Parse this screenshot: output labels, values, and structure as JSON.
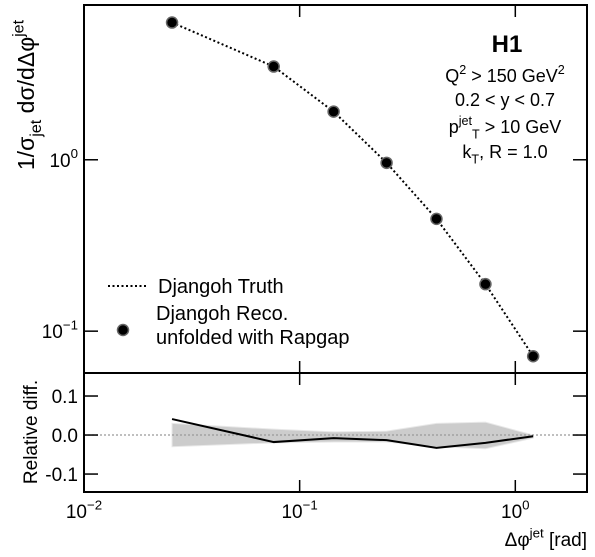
{
  "chart_data": [
    {
      "type": "line",
      "logo": "H1",
      "annotations": [
        [
          {
            "text": "Q"
          },
          {
            "text": "2",
            "shift": "super"
          },
          {
            "text": " > 150 GeV"
          },
          {
            "text": "2",
            "shift": "super"
          }
        ],
        [
          {
            "text": "0.2 < y < 0.7"
          }
        ],
        [
          {
            "text": "p"
          },
          {
            "text": "jet",
            "shift": "super"
          },
          {
            "text": "T",
            "shift": "sub"
          },
          {
            "text": " > 10 GeV"
          }
        ],
        [
          {
            "text": "k"
          },
          {
            "text": "T",
            "shift": "sub"
          },
          {
            "text": ", R = 1.0"
          }
        ]
      ],
      "ylabel": [
        {
          "text": "1/σ"
        },
        {
          "text": "jet",
          "shift": "sub"
        },
        {
          "text": " dσ/dΔφ"
        },
        {
          "text": "jet",
          "shift": "super"
        }
      ],
      "x": [
        0.0256,
        0.0758,
        0.1437,
        0.253,
        0.431,
        0.727,
        1.21
      ],
      "series": [
        {
          "name": "Djangoh Truth",
          "color": "#000000",
          "style": "dotted",
          "values": [
            6.32,
            3.5,
            1.91,
            0.96,
            0.452,
            0.188,
            0.0714
          ]
        },
        {
          "name": "Djangoh Reco.\nunfolded with Rapgap",
          "color": "#000000",
          "style": "marker",
          "values": [
            6.32,
            3.5,
            1.91,
            0.96,
            0.452,
            0.188,
            0.0714
          ]
        }
      ],
      "xlim": [
        0.01,
        2.15
      ],
      "xlog": true,
      "ylim": [
        0.057,
        8.0
      ],
      "ylog": true,
      "yticks": [
        {
          "value": 1,
          "label": "10",
          "exp": "0"
        },
        {
          "value": 0.1,
          "label": "10",
          "exp": "−1"
        }
      ],
      "legend": "lower-left"
    },
    {
      "type": "line",
      "ylabel": [
        {
          "text": "Relative diff."
        }
      ],
      "xlabel": [
        {
          "text": "Δφ"
        },
        {
          "text": "jet",
          "shift": "super"
        },
        {
          "text": " [rad]"
        }
      ],
      "x": [
        0.0256,
        0.0758,
        0.1437,
        0.253,
        0.431,
        0.727,
        1.21
      ],
      "series": [
        {
          "color": "#000000",
          "values": [
            0.041,
            -0.018,
            -0.008,
            -0.013,
            -0.033,
            -0.02,
            -0.003
          ]
        }
      ],
      "band": {
        "color": "#cccccc",
        "upper": [
          0.03,
          0.015,
          0.008,
          0.01,
          0.03,
          0.033,
          0.0
        ],
        "lower": [
          -0.03,
          -0.02,
          -0.018,
          -0.018,
          -0.03,
          -0.035,
          -0.008
        ]
      },
      "hline": 0,
      "xlim": [
        0.01,
        2.15
      ],
      "xlog": true,
      "xticks": [
        {
          "value": 0.01,
          "label": "10",
          "exp": "−2"
        },
        {
          "value": 0.1,
          "label": "10",
          "exp": "−1"
        },
        {
          "value": 1,
          "label": "10",
          "exp": "0"
        }
      ],
      "ylim": [
        -0.146,
        0.159
      ],
      "yticks": [
        0.1,
        {
          "value": 0,
          "label": "0.0"
        },
        -0.1
      ]
    }
  ]
}
